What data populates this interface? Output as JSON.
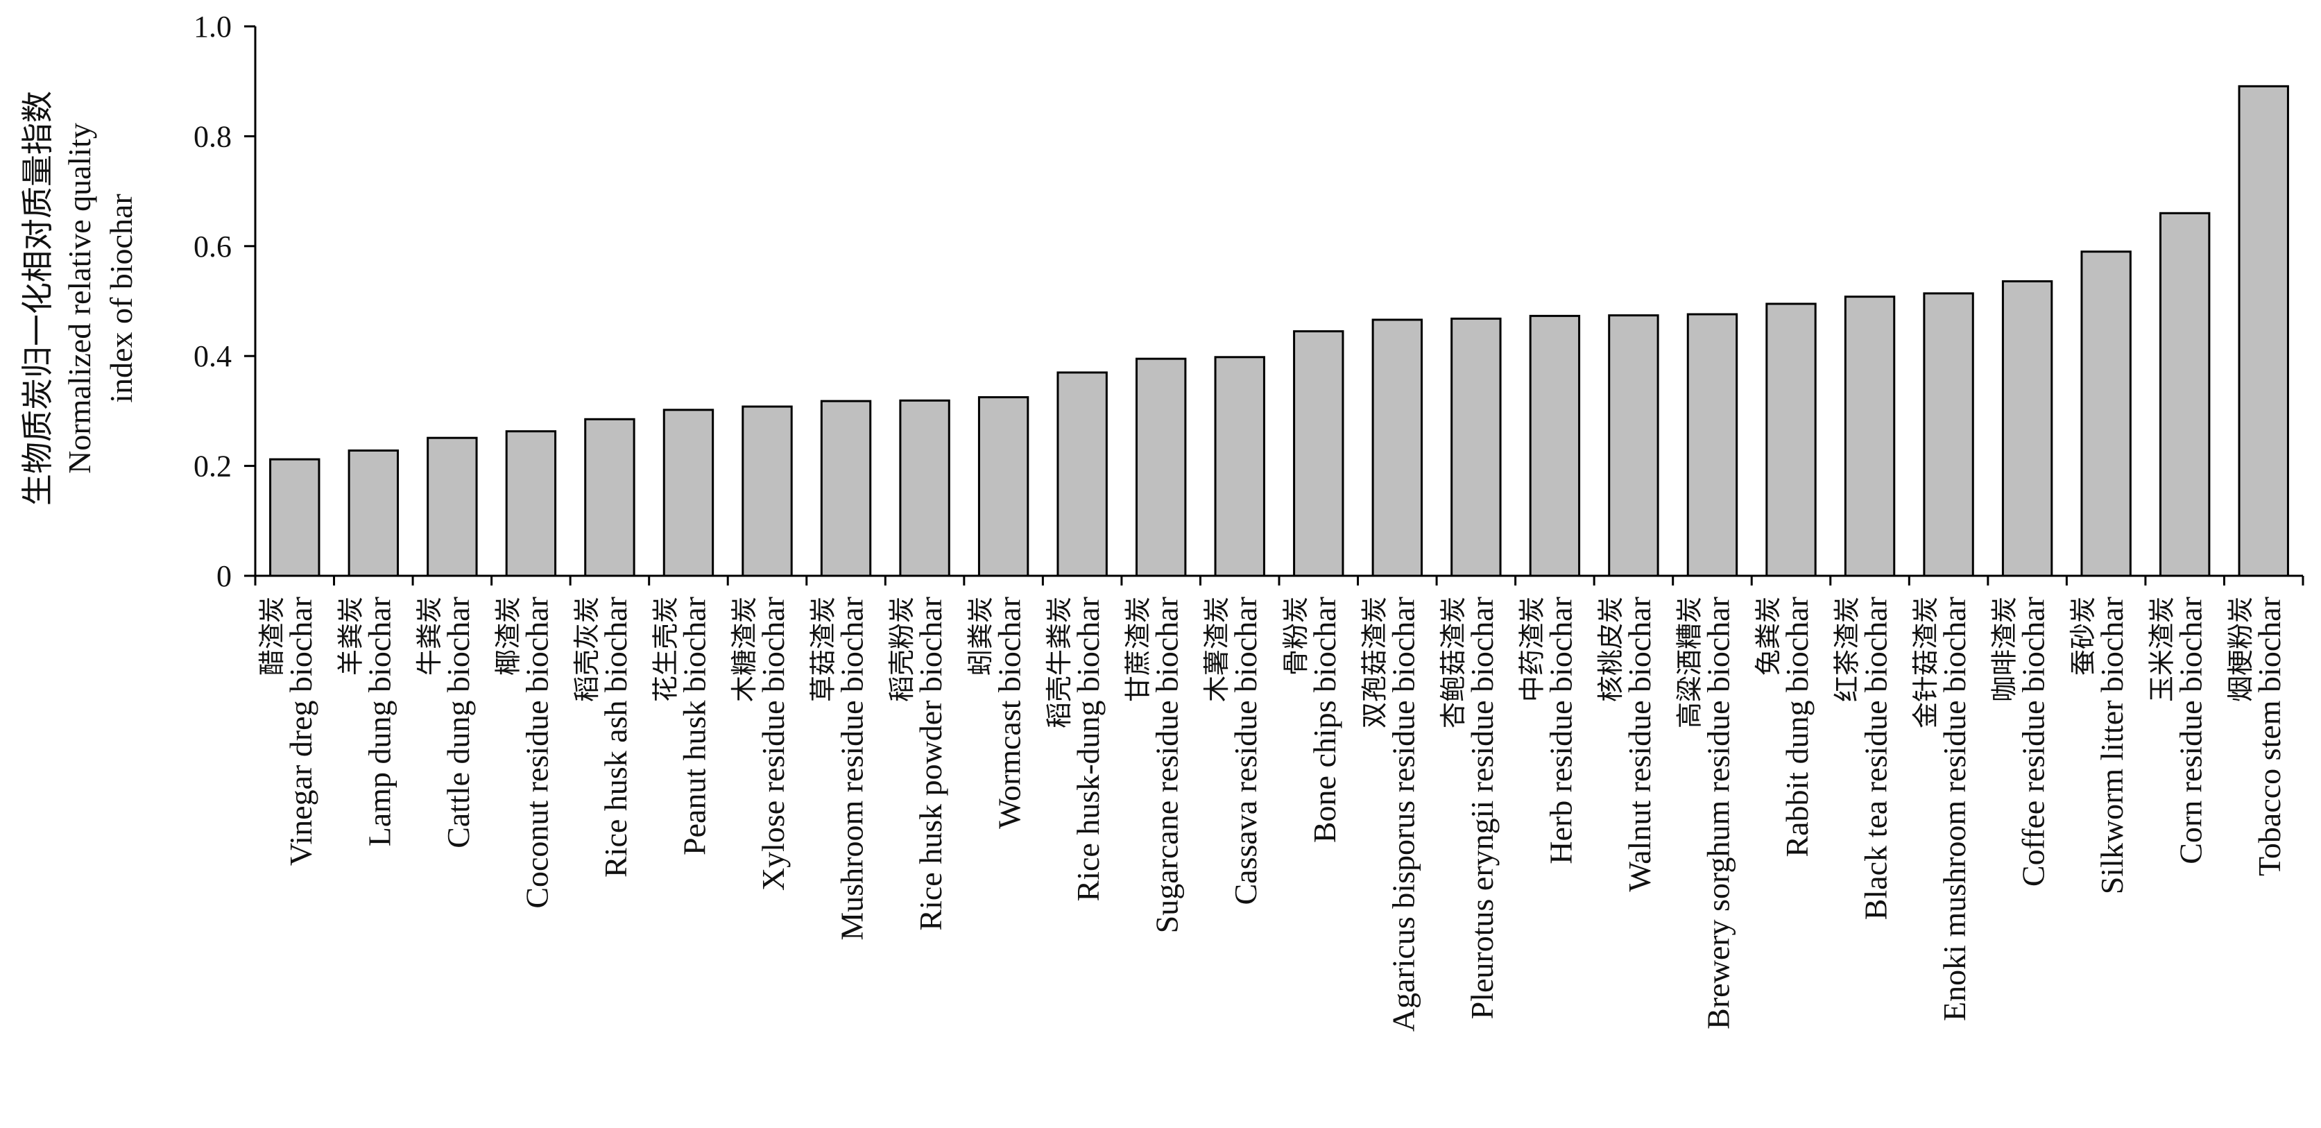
{
  "chart_data": {
    "type": "bar",
    "ylabel_cn": "生物质炭归一化相对质量指数",
    "ylabel_en_line1": "Normalized relative quality",
    "ylabel_en_line2": "index of biochar",
    "xlabel": "",
    "ylim": [
      0,
      1.0
    ],
    "yticks": [
      {
        "value": 0,
        "label": "0"
      },
      {
        "value": 0.2,
        "label": "0.2"
      },
      {
        "value": 0.4,
        "label": "0.4"
      },
      {
        "value": 0.6,
        "label": "0.6"
      },
      {
        "value": 0.8,
        "label": "0.8"
      },
      {
        "value": 1.0,
        "label": "1.0"
      }
    ],
    "grid": false,
    "bar_color": "#bfbfbf",
    "categories": [
      {
        "cn": "醋渣炭",
        "en": "Vinegar dreg biochar",
        "value": 0.212
      },
      {
        "cn": "羊粪炭",
        "en": "Lamp dung biochar",
        "value": 0.228
      },
      {
        "cn": "牛粪炭",
        "en": "Cattle dung biochar",
        "value": 0.251
      },
      {
        "cn": "椰渣炭",
        "en": "Coconut residue biochar",
        "value": 0.263
      },
      {
        "cn": "稻壳灰炭",
        "en": "Rice husk ash biochar",
        "value": 0.285
      },
      {
        "cn": "花生壳炭",
        "en": "Peanut husk biochar",
        "value": 0.302
      },
      {
        "cn": "木糖渣炭",
        "en": "Xylose residue biochar",
        "value": 0.308
      },
      {
        "cn": "草菇渣炭",
        "en": "Mushroom residue biochar",
        "value": 0.318
      },
      {
        "cn": "稻壳粉炭",
        "en": "Rice husk powder biochar",
        "value": 0.319
      },
      {
        "cn": "蚓粪炭",
        "en": "Wormcast biochar",
        "value": 0.325
      },
      {
        "cn": "稻壳牛粪炭",
        "en": "Rice husk-dung biochar",
        "value": 0.37
      },
      {
        "cn": "甘蔗渣炭",
        "en": "Sugarcane residue biochar",
        "value": 0.395
      },
      {
        "cn": "木薯渣炭",
        "en": "Cassava residue biochar",
        "value": 0.398
      },
      {
        "cn": "骨粉炭",
        "en": "Bone chips biochar",
        "value": 0.445
      },
      {
        "cn": "双孢菇渣炭",
        "en": "Agaricus bisporus residue biochar",
        "value": 0.466
      },
      {
        "cn": "杏鲍菇渣炭",
        "en": "Pleurotus eryngii residue biochar",
        "value": 0.468
      },
      {
        "cn": "中药渣炭",
        "en": "Herb residue biochar",
        "value": 0.473
      },
      {
        "cn": "核桃皮炭",
        "en": "Walnut residue biochar",
        "value": 0.474
      },
      {
        "cn": "高粱酒糟炭",
        "en": "Brewery sorghum residue biochar",
        "value": 0.476
      },
      {
        "cn": "兔粪炭",
        "en": "Rabbit dung biochar",
        "value": 0.495
      },
      {
        "cn": "红茶渣炭",
        "en": "Black tea residue biochar",
        "value": 0.508
      },
      {
        "cn": "金针菇渣炭",
        "en": "Enoki mushroom residue biochar",
        "value": 0.514
      },
      {
        "cn": "咖啡渣炭",
        "en": "Coffee residue biochar",
        "value": 0.536
      },
      {
        "cn": "蚕砂炭",
        "en": "Silkworm litter biochar",
        "value": 0.59
      },
      {
        "cn": "玉米渣炭",
        "en": "Corn residue biochar",
        "value": 0.66
      },
      {
        "cn": "烟梗粉炭",
        "en": "Tobacco stem biochar",
        "value": 0.891
      }
    ]
  }
}
